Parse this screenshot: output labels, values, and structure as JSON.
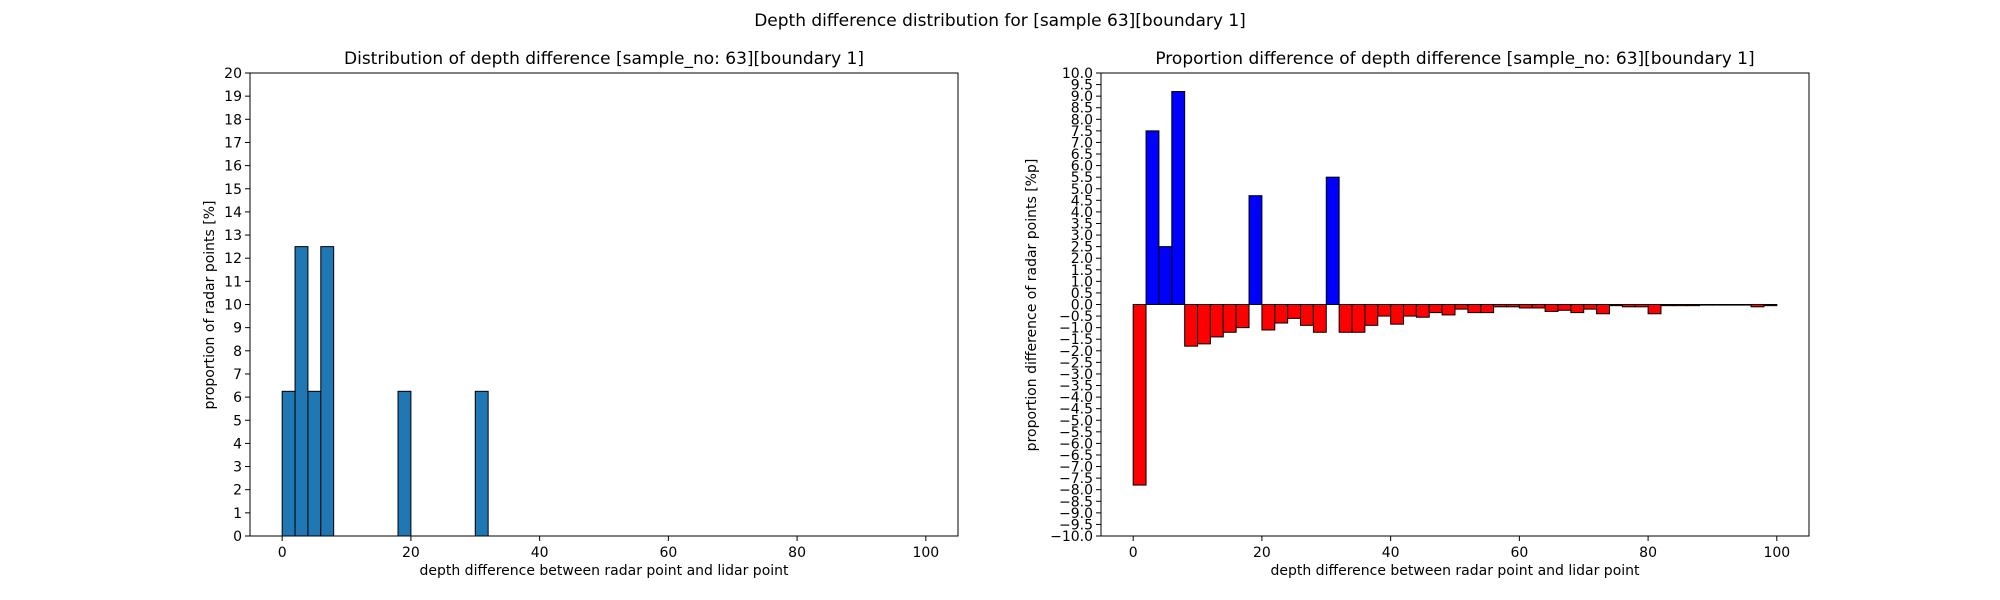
{
  "figure": {
    "suptitle": "Depth difference distribution for [sample 63][boundary 1]"
  },
  "chart_data": [
    {
      "type": "bar",
      "title": "Distribution of depth difference [sample_no: 63][boundary 1]",
      "xlabel": "depth difference between radar point and lidar point",
      "ylabel": "proportion of radar points [%]",
      "xlim": [
        -5,
        105
      ],
      "ylim": [
        0,
        20
      ],
      "xticks": [
        0,
        20,
        40,
        60,
        80,
        100
      ],
      "yticks": [
        0,
        1,
        2,
        3,
        4,
        5,
        6,
        7,
        8,
        9,
        10,
        11,
        12,
        13,
        14,
        15,
        16,
        17,
        18,
        19,
        20
      ],
      "bin_width": 2,
      "bins": [
        {
          "x": 0,
          "value": 6.25
        },
        {
          "x": 2,
          "value": 12.5
        },
        {
          "x": 4,
          "value": 6.25
        },
        {
          "x": 6,
          "value": 12.5
        },
        {
          "x": 18,
          "value": 6.25
        },
        {
          "x": 30,
          "value": 6.25
        }
      ],
      "colors": {
        "bar": "#1f77b4",
        "edge": "#000000"
      }
    },
    {
      "type": "bar",
      "title": "Proportion difference of depth difference [sample_no: 63][boundary 1]",
      "xlabel": "depth difference between radar point and lidar point",
      "ylabel": "proportion difference of radar points [%p]",
      "xlim": [
        -5,
        105
      ],
      "ylim": [
        -10,
        10
      ],
      "xticks": [
        0,
        20,
        40,
        60,
        80,
        100
      ],
      "ytick_step": 0.5,
      "bin_width": 2,
      "bins": [
        {
          "x": 0,
          "value": -7.8
        },
        {
          "x": 2,
          "value": 7.5
        },
        {
          "x": 4,
          "value": 2.5
        },
        {
          "x": 6,
          "value": 9.2
        },
        {
          "x": 8,
          "value": -1.8
        },
        {
          "x": 10,
          "value": -1.7
        },
        {
          "x": 12,
          "value": -1.4
        },
        {
          "x": 14,
          "value": -1.2
        },
        {
          "x": 16,
          "value": -1.0
        },
        {
          "x": 18,
          "value": 4.7
        },
        {
          "x": 20,
          "value": -1.1
        },
        {
          "x": 22,
          "value": -0.8
        },
        {
          "x": 24,
          "value": -0.6
        },
        {
          "x": 26,
          "value": -0.9
        },
        {
          "x": 28,
          "value": -1.2
        },
        {
          "x": 30,
          "value": 5.5
        },
        {
          "x": 32,
          "value": -1.2
        },
        {
          "x": 34,
          "value": -1.2
        },
        {
          "x": 36,
          "value": -0.9
        },
        {
          "x": 38,
          "value": -0.5
        },
        {
          "x": 40,
          "value": -0.85
        },
        {
          "x": 42,
          "value": -0.5
        },
        {
          "x": 44,
          "value": -0.55
        },
        {
          "x": 46,
          "value": -0.35
        },
        {
          "x": 48,
          "value": -0.45
        },
        {
          "x": 50,
          "value": -0.2
        },
        {
          "x": 52,
          "value": -0.35
        },
        {
          "x": 54,
          "value": -0.35
        },
        {
          "x": 56,
          "value": -0.1
        },
        {
          "x": 58,
          "value": -0.1
        },
        {
          "x": 60,
          "value": -0.15
        },
        {
          "x": 62,
          "value": -0.15
        },
        {
          "x": 64,
          "value": -0.3
        },
        {
          "x": 66,
          "value": -0.25
        },
        {
          "x": 68,
          "value": -0.35
        },
        {
          "x": 70,
          "value": -0.2
        },
        {
          "x": 72,
          "value": -0.4
        },
        {
          "x": 74,
          "value": -0.05
        },
        {
          "x": 76,
          "value": -0.1
        },
        {
          "x": 78,
          "value": -0.1
        },
        {
          "x": 80,
          "value": -0.4
        },
        {
          "x": 82,
          "value": -0.05
        },
        {
          "x": 84,
          "value": -0.05
        },
        {
          "x": 86,
          "value": -0.05
        },
        {
          "x": 88,
          "value": -0.02
        },
        {
          "x": 90,
          "value": -0.02
        },
        {
          "x": 92,
          "value": -0.02
        },
        {
          "x": 94,
          "value": -0.02
        },
        {
          "x": 96,
          "value": -0.1
        },
        {
          "x": 98,
          "value": -0.05
        }
      ],
      "colors": {
        "positive": "#0000ff",
        "negative": "#ff0000",
        "edge": "#000000"
      }
    }
  ]
}
